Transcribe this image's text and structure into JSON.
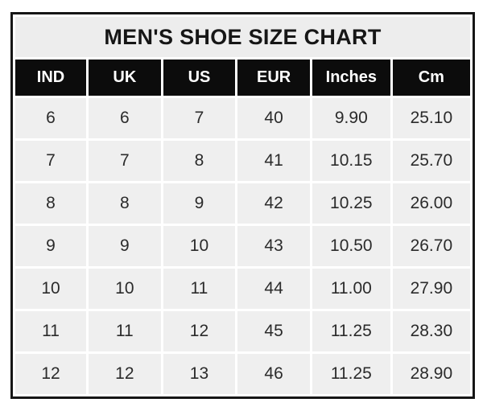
{
  "page": {
    "background_color": "#ffffff",
    "border_color": "#161616",
    "header_bg_color": "#0c0c0c",
    "header_text_color": "#ffffff",
    "cell_bg_color": "#efefef",
    "title_bg_color": "#ededed",
    "cell_text_color": "#2b2b2b",
    "grid_color": "#ffffff"
  },
  "table": {
    "title": "MEN'S SHOE SIZE CHART",
    "headers": [
      "IND",
      "UK",
      "US",
      "EUR",
      "Inches",
      "Cm"
    ],
    "rows": [
      [
        "6",
        "6",
        "7",
        "40",
        "9.90",
        "25.10"
      ],
      [
        "7",
        "7",
        "8",
        "41",
        "10.15",
        "25.70"
      ],
      [
        "8",
        "8",
        "9",
        "42",
        "10.25",
        "26.00"
      ],
      [
        "9",
        "9",
        "10",
        "43",
        "10.50",
        "26.70"
      ],
      [
        "10",
        "10",
        "11",
        "44",
        "11.00",
        "27.90"
      ],
      [
        "11",
        "11",
        "12",
        "45",
        "11.25",
        "28.30"
      ],
      [
        "12",
        "12",
        "13",
        "46",
        "11.25",
        "28.90"
      ]
    ]
  },
  "chart_data": {
    "type": "table",
    "title": "MEN'S SHOE SIZE CHART",
    "columns": [
      "IND",
      "UK",
      "US",
      "EUR",
      "Inches",
      "Cm"
    ],
    "rows": [
      [
        6,
        6,
        7,
        40,
        9.9,
        25.1
      ],
      [
        7,
        7,
        8,
        41,
        10.15,
        25.7
      ],
      [
        8,
        8,
        9,
        42,
        10.25,
        26.0
      ],
      [
        9,
        9,
        10,
        43,
        10.5,
        26.7
      ],
      [
        10,
        10,
        11,
        44,
        11.0,
        27.9
      ],
      [
        11,
        11,
        12,
        45,
        11.25,
        28.3
      ],
      [
        12,
        12,
        13,
        46,
        11.25,
        28.9
      ]
    ],
    "notes": "Men's shoe size conversion chart: Indian, UK, US, European sizes with foot length in inches and centimeters"
  }
}
